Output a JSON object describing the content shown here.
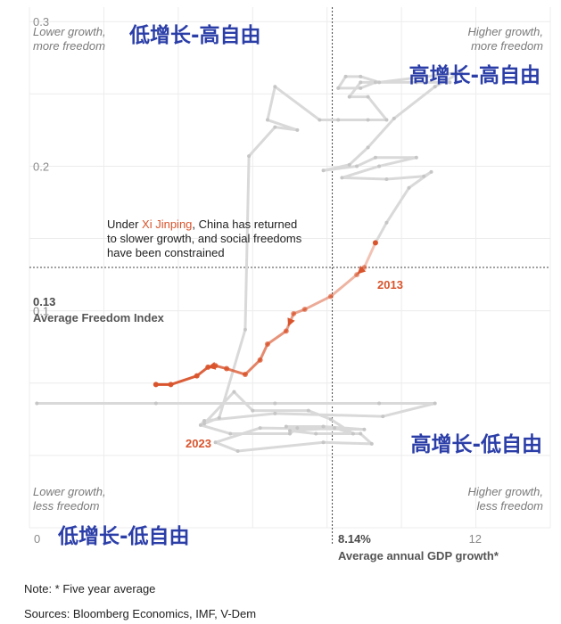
{
  "chart_data": {
    "type": "line",
    "title": "",
    "xlabel": "Average annual GDP growth*",
    "ylabel": "Average Freedom Index",
    "xlim": [
      0,
      14
    ],
    "ylim": [
      -0.05,
      0.31
    ],
    "x_ticks": [
      {
        "value": 0,
        "label": "0"
      },
      {
        "value": 12,
        "label": "12"
      }
    ],
    "y_ticks": [
      {
        "value": 0.1,
        "label": "0.1"
      },
      {
        "value": 0.2,
        "label": "0.2"
      },
      {
        "value": 0.3,
        "label": "0.3"
      }
    ],
    "reference_lines": {
      "x": {
        "value": 8.14,
        "label": "8.14%"
      },
      "y": {
        "value": 0.13,
        "label": "0.13"
      }
    },
    "grid": true,
    "series": [
      {
        "name": "",
        "color": "#d9d9d9",
        "points": [
          [
            0.2,
            0.036
          ],
          [
            3.4,
            0.036
          ],
          [
            6.6,
            0.036
          ],
          [
            9.4,
            0.036
          ],
          [
            10.9,
            0.036
          ],
          [
            9.5,
            0.027
          ],
          [
            6.6,
            0.029
          ],
          [
            4.7,
            0.024
          ],
          [
            4.6,
            0.021
          ],
          [
            5.4,
            0.015
          ],
          [
            7.0,
            0.015
          ],
          [
            7.2,
            0.019
          ],
          [
            6.9,
            0.02
          ],
          [
            7.9,
            0.02
          ],
          [
            9.0,
            0.018
          ],
          [
            6.2,
            0.019
          ],
          [
            5.0,
            0.009
          ],
          [
            5.6,
            0.003
          ],
          [
            7.9,
            0.009
          ],
          [
            9.2,
            0.008
          ],
          [
            8.9,
            0.015
          ],
          [
            7.7,
            0.015
          ],
          [
            7.0,
            0.017
          ],
          [
            8.2,
            0.019
          ],
          [
            8.7,
            0.015
          ],
          [
            8.1,
            0.025
          ],
          [
            7.5,
            0.031
          ],
          [
            6.0,
            0.031
          ],
          [
            5.5,
            0.044
          ],
          [
            4.7,
            0.022
          ],
          [
            5.1,
            0.026
          ],
          [
            5.8,
            0.087
          ],
          [
            5.9,
            0.207
          ],
          [
            6.6,
            0.227
          ],
          [
            7.2,
            0.225
          ],
          [
            6.4,
            0.232
          ],
          [
            6.6,
            0.255
          ],
          [
            7.8,
            0.232
          ],
          [
            8.3,
            0.232
          ],
          [
            9.1,
            0.232
          ],
          [
            9.6,
            0.232
          ],
          [
            9.1,
            0.248
          ],
          [
            8.6,
            0.248
          ],
          [
            8.9,
            0.258
          ],
          [
            10.4,
            0.258
          ],
          [
            11.3,
            0.258
          ],
          [
            9.3,
            0.258
          ],
          [
            8.9,
            0.254
          ],
          [
            8.3,
            0.254
          ],
          [
            8.5,
            0.262
          ],
          [
            8.9,
            0.262
          ],
          [
            9.4,
            0.258
          ],
          [
            11.6,
            0.265
          ],
          [
            10.9,
            0.255
          ],
          [
            9.8,
            0.233
          ],
          [
            9.1,
            0.213
          ],
          [
            8.6,
            0.201
          ],
          [
            7.9,
            0.197
          ],
          [
            8.8,
            0.2
          ],
          [
            9.3,
            0.206
          ],
          [
            10.4,
            0.206
          ],
          [
            9.4,
            0.2
          ],
          [
            8.4,
            0.192
          ],
          [
            9.6,
            0.191
          ],
          [
            10.6,
            0.193
          ],
          [
            10.8,
            0.196
          ],
          [
            10.2,
            0.185
          ],
          [
            9.6,
            0.161
          ],
          [
            9.3,
            0.147
          ]
        ]
      },
      {
        "name": "",
        "color": "#d9542c",
        "points": [
          [
            9.3,
            0.147
          ],
          [
            9.0,
            0.13
          ],
          [
            8.8,
            0.125
          ],
          [
            8.1,
            0.11
          ],
          [
            7.4,
            0.101
          ],
          [
            7.1,
            0.098
          ],
          [
            6.9,
            0.086
          ],
          [
            6.4,
            0.077
          ],
          [
            6.2,
            0.066
          ],
          [
            5.8,
            0.056
          ],
          [
            5.3,
            0.06
          ],
          [
            5.0,
            0.062
          ],
          [
            4.8,
            0.061
          ],
          [
            4.5,
            0.055
          ],
          [
            3.8,
            0.049
          ],
          [
            3.4,
            0.049
          ]
        ]
      }
    ],
    "labels": {
      "start_year": "2013",
      "end_year": "2023"
    },
    "quadrants": {
      "top_left": {
        "line1": "Lower growth,",
        "line2": "more freedom",
        "zh": "低增长-高自由"
      },
      "top_right": {
        "line1": "Higher growth,",
        "line2": "more freedom",
        "zh": "高增长-高自由"
      },
      "bottom_left": {
        "line1": "Lower growth,",
        "line2": "less freedom",
        "zh": "低增长-低自由"
      },
      "bottom_right": {
        "line1": "Higher growth,",
        "line2": "less freedom",
        "zh": "高增长-低自由"
      }
    },
    "annotation": {
      "prefix": "Under ",
      "highlight": "Xi Jinping",
      "after_highlight": ", China has returned",
      "line2": "to slower growth, and social freedoms",
      "line3": "have been constrained"
    },
    "colors": {
      "history": "#d9d9d9",
      "highlight": "#d9542c",
      "chinese_labels": "#2b3ea8"
    }
  },
  "notes": {
    "note": "Note: * Five year average",
    "sources": "Sources: Bloomberg Economics, IMF, V-Dem"
  }
}
